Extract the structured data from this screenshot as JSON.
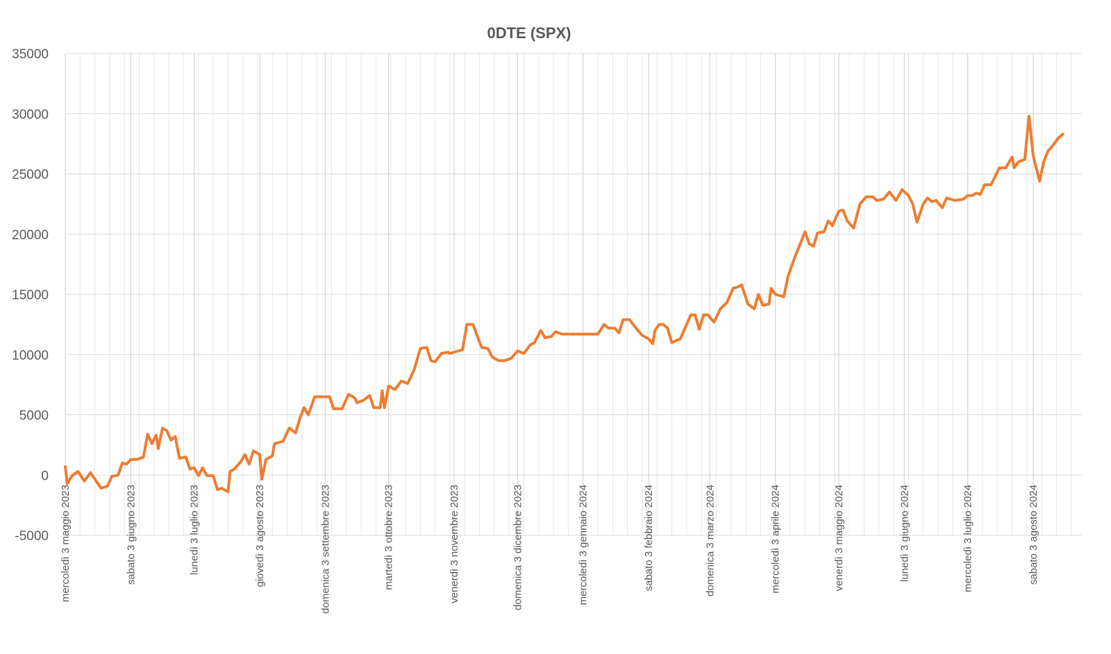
{
  "chart_data": {
    "type": "line",
    "title": "0DTE  (SPX)",
    "xlabel": "",
    "ylabel": "",
    "ylim": [
      -5000,
      35000
    ],
    "yticks": [
      35000,
      30000,
      25000,
      20000,
      15000,
      10000,
      5000,
      0,
      -5000
    ],
    "negative_tick_color": "#c00000",
    "line_color": "#ed7d31",
    "grid": true,
    "legend": "none",
    "x_start": "2023-05-03",
    "x_end": "2024-08-26",
    "x_tick_dates": [
      "2023-05-03",
      "2023-06-03",
      "2023-07-03",
      "2023-08-03",
      "2023-09-03",
      "2023-10-03",
      "2023-11-03",
      "2023-12-03",
      "2024-01-03",
      "2024-02-03",
      "2024-03-03",
      "2024-04-03",
      "2024-05-03",
      "2024-06-03",
      "2024-07-03",
      "2024-08-03"
    ],
    "x_tick_labels": [
      "mercoledì 3 maggio 2023",
      "sabato 3 giugno 2023",
      "lunedì 3 luglio 2023",
      "giovedì 3 agosto 2023",
      "domenica 3 settembre 2023",
      "martedì 3 ottobre 2023",
      "venerdì 3 novembre 2023",
      "domenica 3 dicembre 2023",
      "mercoledì 3 gennaio 2024",
      "sabato 3 febbraio 2024",
      "domenica 3 marzo 2024",
      "mercoledì 3 aprile 2024",
      "venerdì 3 maggio 2024",
      "lunedì 3 giugno 2024",
      "mercoledì 3 luglio 2024",
      "sabato 3 agosto 2024"
    ],
    "series": [
      {
        "values": [
          [
            "2023-05-03",
            700
          ],
          [
            "2023-05-04",
            -700
          ],
          [
            "2023-05-06",
            -100
          ],
          [
            "2023-05-09",
            300
          ],
          [
            "2023-05-12",
            -500
          ],
          [
            "2023-05-15",
            200
          ],
          [
            "2023-05-18",
            -600
          ],
          [
            "2023-05-20",
            -1100
          ],
          [
            "2023-05-23",
            -900
          ],
          [
            "2023-05-25",
            -100
          ],
          [
            "2023-05-28",
            0
          ],
          [
            "2023-05-30",
            1000
          ],
          [
            "2023-06-01",
            900
          ],
          [
            "2023-06-03",
            1300
          ],
          [
            "2023-06-06",
            1300
          ],
          [
            "2023-06-09",
            1500
          ],
          [
            "2023-06-11",
            3400
          ],
          [
            "2023-06-13",
            2600
          ],
          [
            "2023-06-15",
            3300
          ],
          [
            "2023-06-16",
            2200
          ],
          [
            "2023-06-18",
            3900
          ],
          [
            "2023-06-20",
            3700
          ],
          [
            "2023-06-22",
            2900
          ],
          [
            "2023-06-24",
            3200
          ],
          [
            "2023-06-26",
            1400
          ],
          [
            "2023-06-29",
            1500
          ],
          [
            "2023-07-01",
            500
          ],
          [
            "2023-07-03",
            600
          ],
          [
            "2023-07-05",
            -50
          ],
          [
            "2023-07-07",
            600
          ],
          [
            "2023-07-09",
            -50
          ],
          [
            "2023-07-12",
            -50
          ],
          [
            "2023-07-14",
            -1200
          ],
          [
            "2023-07-16",
            -1100
          ],
          [
            "2023-07-19",
            -1400
          ],
          [
            "2023-07-20",
            300
          ],
          [
            "2023-07-22",
            500
          ],
          [
            "2023-07-25",
            1100
          ],
          [
            "2023-07-27",
            1700
          ],
          [
            "2023-07-29",
            900
          ],
          [
            "2023-07-31",
            2000
          ],
          [
            "2023-08-03",
            1700
          ],
          [
            "2023-08-04",
            -350
          ],
          [
            "2023-08-06",
            1300
          ],
          [
            "2023-08-09",
            1600
          ],
          [
            "2023-08-10",
            2600
          ],
          [
            "2023-08-14",
            2800
          ],
          [
            "2023-08-17",
            3900
          ],
          [
            "2023-08-20",
            3500
          ],
          [
            "2023-08-22",
            4700
          ],
          [
            "2023-08-24",
            5600
          ],
          [
            "2023-08-26",
            5000
          ],
          [
            "2023-08-29",
            6500
          ],
          [
            "2023-09-03",
            6500
          ],
          [
            "2023-09-05",
            6500
          ],
          [
            "2023-09-07",
            5500
          ],
          [
            "2023-09-11",
            5500
          ],
          [
            "2023-09-14",
            6700
          ],
          [
            "2023-09-17",
            6400
          ],
          [
            "2023-09-18",
            6000
          ],
          [
            "2023-09-21",
            6200
          ],
          [
            "2023-09-24",
            6600
          ],
          [
            "2023-09-26",
            5600
          ],
          [
            "2023-09-29",
            5600
          ],
          [
            "2023-09-30",
            7000
          ],
          [
            "2023-10-01",
            5600
          ],
          [
            "2023-10-03",
            7400
          ],
          [
            "2023-10-06",
            7100
          ],
          [
            "2023-10-09",
            7800
          ],
          [
            "2023-10-12",
            7600
          ],
          [
            "2023-10-15",
            8700
          ],
          [
            "2023-10-18",
            10500
          ],
          [
            "2023-10-21",
            10600
          ],
          [
            "2023-10-23",
            9500
          ],
          [
            "2023-10-25",
            9400
          ],
          [
            "2023-10-28",
            10100
          ],
          [
            "2023-10-31",
            10200
          ],
          [
            "2023-11-01",
            10100
          ],
          [
            "2023-11-03",
            10200
          ],
          [
            "2023-11-05",
            10300
          ],
          [
            "2023-11-07",
            10400
          ],
          [
            "2023-11-09",
            12500
          ],
          [
            "2023-11-12",
            12500
          ],
          [
            "2023-11-14",
            11500
          ],
          [
            "2023-11-16",
            10600
          ],
          [
            "2023-11-19",
            10500
          ],
          [
            "2023-11-21",
            9800
          ],
          [
            "2023-11-24",
            9500
          ],
          [
            "2023-11-27",
            9500
          ],
          [
            "2023-11-30",
            9700
          ],
          [
            "2023-12-03",
            10300
          ],
          [
            "2023-12-06",
            10100
          ],
          [
            "2023-12-09",
            10800
          ],
          [
            "2023-12-11",
            11000
          ],
          [
            "2023-12-14",
            12000
          ],
          [
            "2023-12-16",
            11400
          ],
          [
            "2023-12-19",
            11500
          ],
          [
            "2023-12-21",
            11900
          ],
          [
            "2023-12-24",
            11700
          ],
          [
            "2024-01-01",
            11700
          ],
          [
            "2024-01-10",
            11700
          ],
          [
            "2024-01-13",
            12500
          ],
          [
            "2024-01-15",
            12200
          ],
          [
            "2024-01-18",
            12200
          ],
          [
            "2024-01-20",
            11800
          ],
          [
            "2024-01-22",
            12900
          ],
          [
            "2024-01-25",
            12900
          ],
          [
            "2024-01-28",
            12200
          ],
          [
            "2024-01-31",
            11600
          ],
          [
            "2024-02-03",
            11300
          ],
          [
            "2024-02-05",
            10900
          ],
          [
            "2024-02-06",
            12000
          ],
          [
            "2024-02-08",
            12500
          ],
          [
            "2024-02-10",
            12500
          ],
          [
            "2024-02-12",
            12200
          ],
          [
            "2024-02-14",
            11000
          ],
          [
            "2024-02-18",
            11300
          ],
          [
            "2024-02-21",
            12500
          ],
          [
            "2024-02-23",
            13300
          ],
          [
            "2024-02-25",
            13300
          ],
          [
            "2024-02-27",
            12100
          ],
          [
            "2024-02-29",
            13300
          ],
          [
            "2024-03-02",
            13300
          ],
          [
            "2024-03-05",
            12700
          ],
          [
            "2024-03-08",
            13800
          ],
          [
            "2024-03-11",
            14300
          ],
          [
            "2024-03-14",
            15500
          ],
          [
            "2024-03-16",
            15600
          ],
          [
            "2024-03-18",
            15800
          ],
          [
            "2024-03-21",
            14200
          ],
          [
            "2024-03-24",
            13800
          ],
          [
            "2024-03-26",
            15000
          ],
          [
            "2024-03-28",
            14100
          ],
          [
            "2024-03-31",
            14200
          ],
          [
            "2024-04-01",
            15500
          ],
          [
            "2024-04-03",
            15000
          ],
          [
            "2024-04-07",
            14800
          ],
          [
            "2024-04-09",
            16500
          ],
          [
            "2024-04-12",
            18000
          ],
          [
            "2024-04-15",
            19300
          ],
          [
            "2024-04-17",
            20200
          ],
          [
            "2024-04-19",
            19200
          ],
          [
            "2024-04-21",
            19000
          ],
          [
            "2024-04-23",
            20100
          ],
          [
            "2024-04-26",
            20200
          ],
          [
            "2024-04-28",
            21100
          ],
          [
            "2024-04-30",
            20700
          ],
          [
            "2024-05-03",
            21900
          ],
          [
            "2024-05-05",
            22000
          ],
          [
            "2024-05-07",
            21100
          ],
          [
            "2024-05-10",
            20500
          ],
          [
            "2024-05-13",
            22500
          ],
          [
            "2024-05-16",
            23100
          ],
          [
            "2024-05-19",
            23100
          ],
          [
            "2024-05-21",
            22800
          ],
          [
            "2024-05-24",
            22900
          ],
          [
            "2024-05-27",
            23500
          ],
          [
            "2024-05-30",
            22800
          ],
          [
            "2024-06-02",
            23700
          ],
          [
            "2024-06-05",
            23200
          ],
          [
            "2024-06-07",
            22500
          ],
          [
            "2024-06-09",
            21000
          ],
          [
            "2024-06-12",
            22500
          ],
          [
            "2024-06-14",
            23000
          ],
          [
            "2024-06-16",
            22700
          ],
          [
            "2024-06-18",
            22800
          ],
          [
            "2024-06-21",
            22200
          ],
          [
            "2024-06-23",
            23000
          ],
          [
            "2024-06-27",
            22800
          ],
          [
            "2024-07-01",
            22900
          ],
          [
            "2024-07-03",
            23200
          ],
          [
            "2024-07-05",
            23200
          ],
          [
            "2024-07-07",
            23400
          ],
          [
            "2024-07-09",
            23300
          ],
          [
            "2024-07-11",
            24100
          ],
          [
            "2024-07-14",
            24100
          ],
          [
            "2024-07-18",
            25500
          ],
          [
            "2024-07-21",
            25500
          ],
          [
            "2024-07-24",
            26400
          ],
          [
            "2024-07-25",
            25500
          ],
          [
            "2024-07-27",
            26000
          ],
          [
            "2024-07-30",
            26200
          ],
          [
            "2024-08-01",
            29800
          ],
          [
            "2024-08-03",
            26500
          ],
          [
            "2024-08-06",
            24400
          ],
          [
            "2024-08-08",
            26000
          ],
          [
            "2024-08-10",
            26900
          ],
          [
            "2024-08-12",
            27300
          ],
          [
            "2024-08-15",
            28000
          ],
          [
            "2024-08-17",
            28300
          ]
        ]
      }
    ]
  }
}
